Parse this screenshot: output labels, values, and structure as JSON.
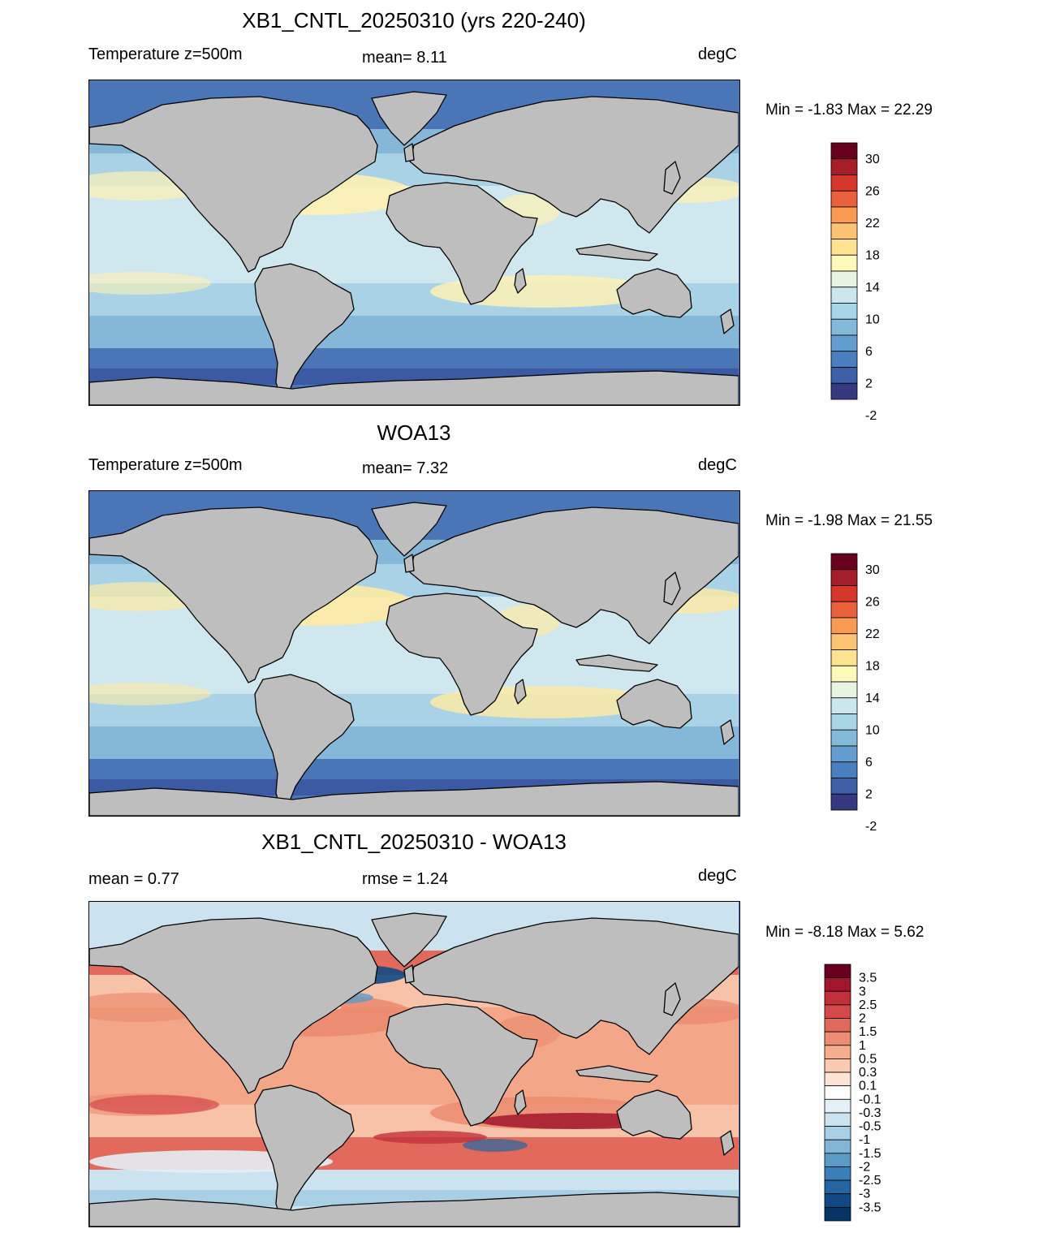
{
  "panels": [
    {
      "title": "XB1_CNTL_20250310 (yrs 220-240)",
      "left_label": "Temperature z=500m",
      "center_label": "mean=   8.11",
      "right_label": "degC",
      "minmax": "Min =  -1.83 Max =  22.29",
      "colorbar": {
        "labels": [
          "30",
          "26",
          "22",
          "18",
          "14",
          "10",
          "6",
          "2",
          "-2"
        ],
        "colors": [
          "#67001f",
          "#a51e2a",
          "#d6372b",
          "#ea5f3c",
          "#f99a55",
          "#fdc373",
          "#fde390",
          "#fef9b9",
          "#e7f4e1",
          "#cbe6ef",
          "#a9d5e8",
          "#83bada",
          "#639cce",
          "#4a7fbe",
          "#3e5fa8",
          "#35397f"
        ]
      },
      "field": {
        "mid_lat": "#fdf1b4",
        "subtropical": "#cfe7ef",
        "mid": "#a9d2e6",
        "south": "#84b7d8",
        "polar": "#4a76b8",
        "deep_polar": "#3c59a3"
      }
    },
    {
      "title": "WOA13",
      "left_label": "Temperature z=500m",
      "center_label": "mean=   7.32",
      "right_label": "degC",
      "minmax": "Min =  -1.98 Max =  21.55",
      "colorbar": {
        "labels": [
          "30",
          "26",
          "22",
          "18",
          "14",
          "10",
          "6",
          "2",
          "-2"
        ],
        "colors": [
          "#67001f",
          "#a51e2a",
          "#d6372b",
          "#ea5f3c",
          "#f99a55",
          "#fdc373",
          "#fde390",
          "#fef9b9",
          "#e7f4e1",
          "#cbe6ef",
          "#a9d5e8",
          "#83bada",
          "#639cce",
          "#4a7fbe",
          "#3e5fa8",
          "#35397f"
        ]
      },
      "field": {
        "mid_lat": "#fdeaa4",
        "subtropical": "#cfe7ef",
        "mid": "#a9d2e6",
        "south": "#84b7d8",
        "polar": "#4a76b8",
        "deep_polar": "#3c59a3"
      }
    },
    {
      "title": "XB1_CNTL_20250310 - WOA13",
      "left_label": "mean =   0.77",
      "center_label": "rmse =   1.24",
      "right_label": "degC",
      "minmax": "Min =  -8.18 Max =   5.62",
      "colorbar": {
        "labels": [
          "3.5",
          "3",
          "2.5",
          "2",
          "1.5",
          "1",
          "0.5",
          "0.3",
          "0.1",
          "-0.1",
          "-0.3",
          "-0.5",
          "-1",
          "-1.5",
          "-2",
          "-2.5",
          "-3",
          "-3.5"
        ],
        "colors": [
          "#67001f",
          "#a1162c",
          "#c2303a",
          "#d4484a",
          "#e26a5c",
          "#ec8d73",
          "#f5ad8f",
          "#f9c9b0",
          "#fce3d3",
          "#ffffff",
          "#e4eff6",
          "#cbe2ef",
          "#a8cfe4",
          "#82b6d7",
          "#5b9bc8",
          "#3c7eb7",
          "#2565a0",
          "#124984",
          "#073366"
        ]
      },
      "field": {
        "mid_lat": "#eb8b70",
        "subtropical": "#f3a788",
        "mid": "#f7c2a8",
        "south": "#e26a5c",
        "polar": "#cbe2ef",
        "deep_polar": "#a8cfe4"
      }
    }
  ],
  "land_color": "#bebebe"
}
